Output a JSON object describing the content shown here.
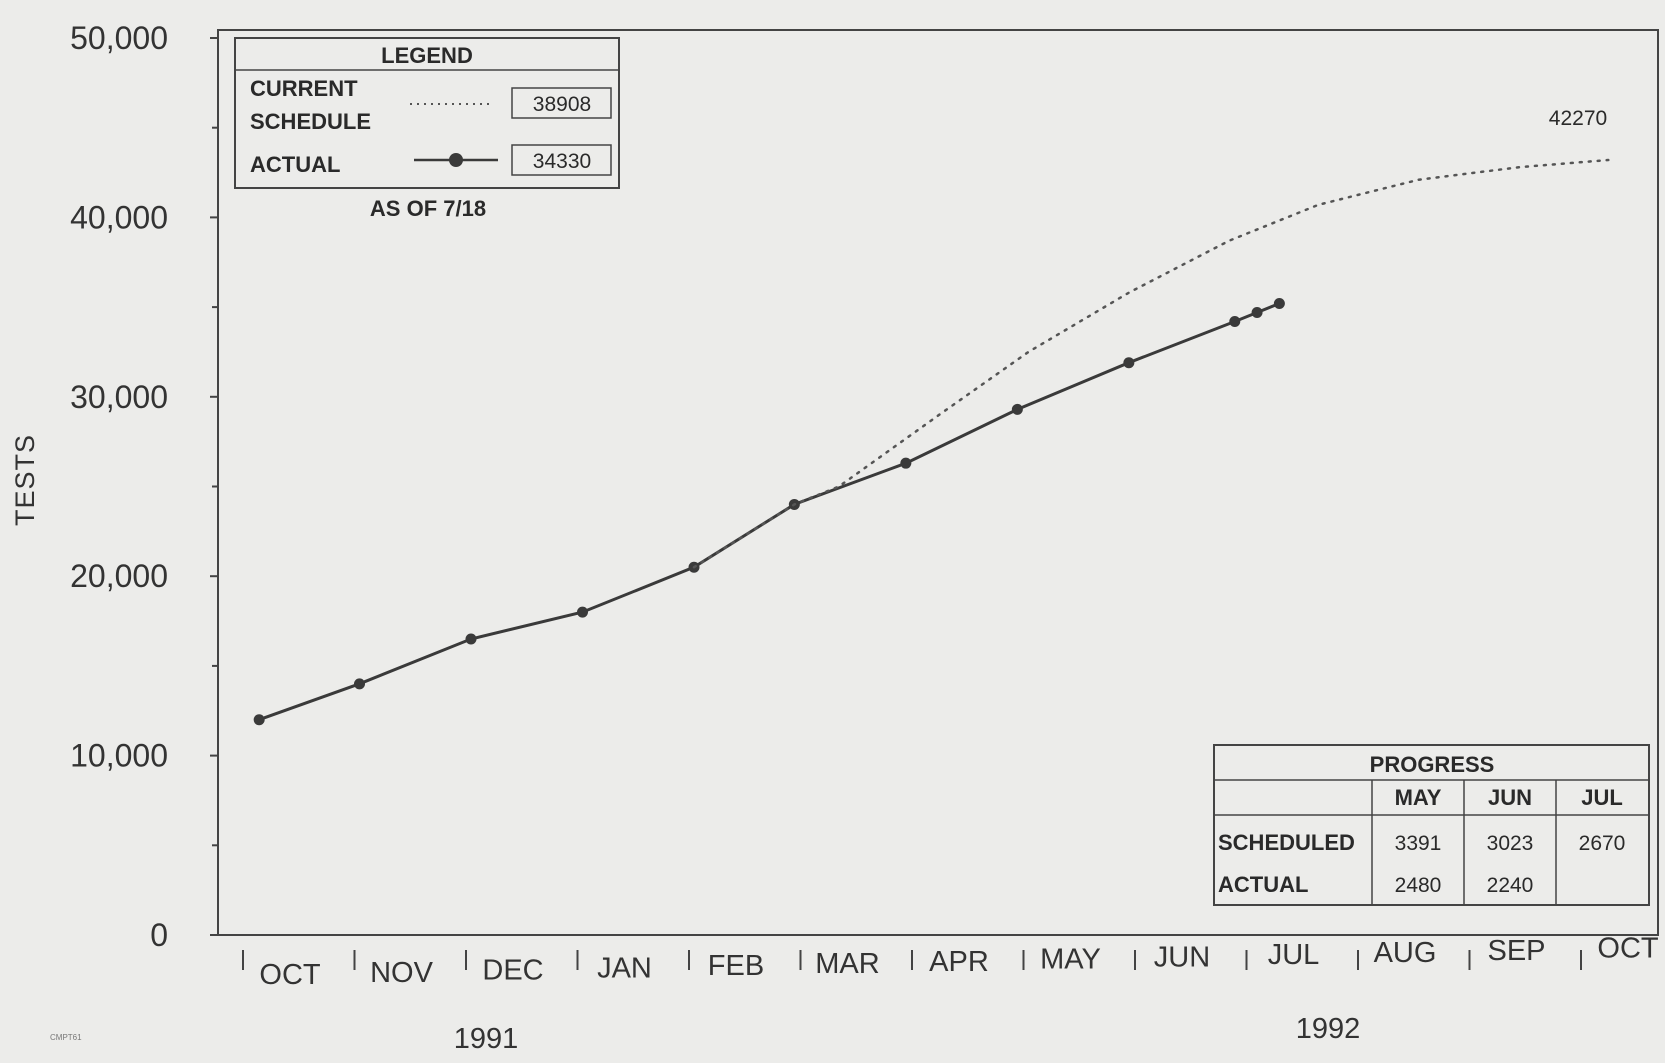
{
  "chart_data": {
    "type": "line",
    "ylabel": "TESTS",
    "ylim": [
      0,
      50000
    ],
    "y_ticks": [
      0,
      10000,
      20000,
      30000,
      40000,
      50000
    ],
    "y_tick_labels": [
      "0",
      "10,000",
      "20,000",
      "30,000",
      "40,000",
      "50,000"
    ],
    "x_months": [
      "OCT",
      "NOV",
      "DEC",
      "JAN",
      "FEB",
      "MAR",
      "APR",
      "MAY",
      "JUN",
      "JUL",
      "AUG",
      "SEP",
      "OCT"
    ],
    "years": [
      "1991",
      "1992"
    ],
    "series": [
      {
        "name": "ACTUAL",
        "style": "solid-with-markers",
        "color": "#3a3a3a",
        "points": [
          {
            "x": 0.1,
            "y": 12000
          },
          {
            "x": 1.0,
            "y": 14000
          },
          {
            "x": 2.0,
            "y": 16500
          },
          {
            "x": 3.0,
            "y": 18000
          },
          {
            "x": 4.0,
            "y": 20500
          },
          {
            "x": 4.9,
            "y": 24000
          },
          {
            "x": 5.9,
            "y": 26300
          },
          {
            "x": 6.9,
            "y": 29300
          },
          {
            "x": 7.9,
            "y": 31900
          },
          {
            "x": 8.85,
            "y": 34200
          },
          {
            "x": 9.05,
            "y": 34700
          },
          {
            "x": 9.25,
            "y": 35200
          }
        ]
      },
      {
        "name": "CURRENT SCHEDULE",
        "style": "dotted",
        "color": "#555555",
        "points": [
          {
            "x": 4.0,
            "y": 20500
          },
          {
            "x": 4.9,
            "y": 24000
          },
          {
            "x": 5.3,
            "y": 25000
          },
          {
            "x": 6.2,
            "y": 29000
          },
          {
            "x": 7.0,
            "y": 32500
          },
          {
            "x": 7.9,
            "y": 35800
          },
          {
            "x": 8.8,
            "y": 38700
          },
          {
            "x": 9.6,
            "y": 40700
          },
          {
            "x": 10.5,
            "y": 42100
          },
          {
            "x": 11.4,
            "y": 42800
          },
          {
            "x": 12.2,
            "y": 43200
          }
        ]
      }
    ],
    "end_annotation": "42270",
    "legend": {
      "title": "LEGEND",
      "schedule_label_1": "CURRENT",
      "schedule_label_2": "SCHEDULE",
      "schedule_value": "38908",
      "actual_label": "ACTUAL",
      "actual_value": "34330",
      "as_of": "AS OF 7/18",
      "placement": "top-left"
    },
    "progress_table": {
      "title": "PROGRESS",
      "columns": [
        "MAY",
        "JUN",
        "JUL"
      ],
      "rows": [
        {
          "label": "SCHEDULED",
          "values": [
            "3391",
            "3023",
            "2670"
          ]
        },
        {
          "label": "ACTUAL",
          "values": [
            "2480",
            "2240",
            ""
          ]
        }
      ],
      "placement": "bottom-right"
    },
    "grid": false
  },
  "footer_code": "CMPT61"
}
